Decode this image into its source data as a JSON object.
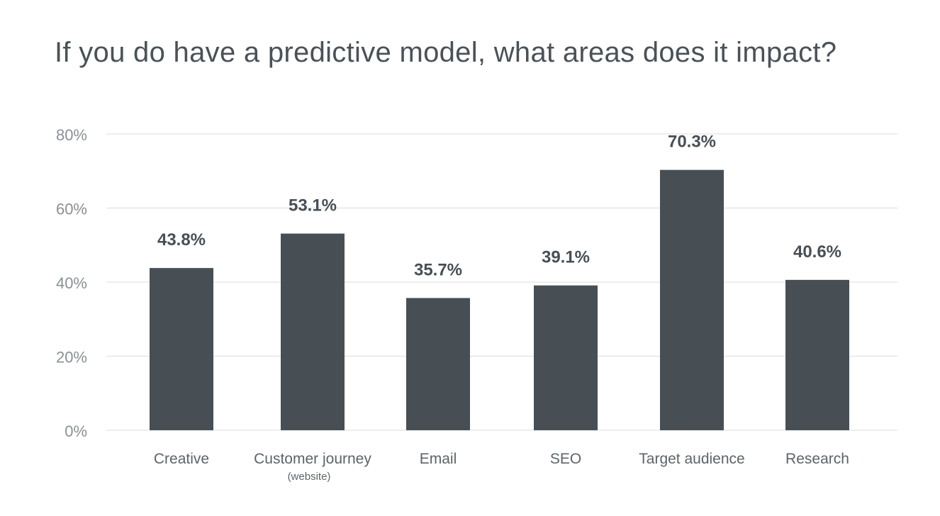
{
  "chart_data": {
    "type": "bar",
    "title": "If you do have a predictive model, what areas does it impact?",
    "categories": [
      "Creative",
      "Customer journey",
      "Email",
      "SEO",
      "Target audience",
      "Research"
    ],
    "category_sublabels": [
      "",
      "(website)",
      "",
      "",
      "",
      ""
    ],
    "values": [
      43.8,
      53.1,
      35.7,
      39.1,
      70.3,
      40.6
    ],
    "data_labels": [
      "43.8%",
      "53.1%",
      "35.7%",
      "39.1%",
      "70.3%",
      "40.6%"
    ],
    "y_ticks": [
      "0%",
      "20%",
      "40%",
      "60%",
      "80%"
    ],
    "y_tick_values": [
      0,
      20,
      40,
      60,
      80
    ],
    "ylim": [
      0,
      80
    ],
    "xlabel": "",
    "ylabel": "",
    "grid": true,
    "legend": "none",
    "colors": {
      "bar": "#474f55",
      "grid": "#dcdcdc",
      "text": "#5c6468",
      "label": "#474f55"
    }
  }
}
